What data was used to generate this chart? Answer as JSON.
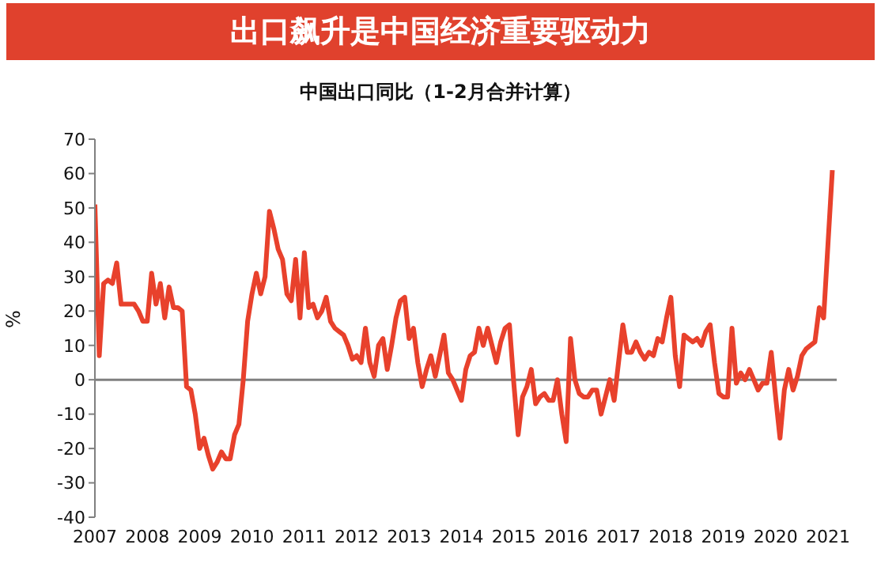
{
  "chart_data": {
    "type": "line",
    "title": "出口飙升是中国经济重要驱动力",
    "subtitle": "中国出口同比（1-2月合并计算）",
    "ylabel": "%",
    "x": [
      "2007-01",
      "2007-02",
      "2007-03",
      "2007-04",
      "2007-05",
      "2007-06",
      "2007-07",
      "2007-08",
      "2007-09",
      "2007-10",
      "2007-11",
      "2007-12",
      "2008-01",
      "2008-02",
      "2008-03",
      "2008-04",
      "2008-05",
      "2008-06",
      "2008-07",
      "2008-08",
      "2008-09",
      "2008-10",
      "2008-11",
      "2008-12",
      "2009-01",
      "2009-02",
      "2009-03",
      "2009-04",
      "2009-05",
      "2009-06",
      "2009-07",
      "2009-08",
      "2009-09",
      "2009-10",
      "2009-11",
      "2009-12",
      "2010-01",
      "2010-02",
      "2010-03",
      "2010-04",
      "2010-05",
      "2010-06",
      "2010-07",
      "2010-08",
      "2010-09",
      "2010-10",
      "2010-11",
      "2010-12",
      "2011-01",
      "2011-02",
      "2011-03",
      "2011-04",
      "2011-05",
      "2011-06",
      "2011-07",
      "2011-08",
      "2011-09",
      "2011-10",
      "2011-11",
      "2011-12",
      "2012-01",
      "2012-02",
      "2012-03",
      "2012-04",
      "2012-05",
      "2012-06",
      "2012-07",
      "2012-08",
      "2012-09",
      "2012-10",
      "2012-11",
      "2012-12",
      "2013-01",
      "2013-02",
      "2013-03",
      "2013-04",
      "2013-05",
      "2013-06",
      "2013-07",
      "2013-08",
      "2013-09",
      "2013-10",
      "2013-11",
      "2013-12",
      "2014-01",
      "2014-02",
      "2014-03",
      "2014-04",
      "2014-05",
      "2014-06",
      "2014-07",
      "2014-08",
      "2014-09",
      "2014-10",
      "2014-11",
      "2014-12",
      "2015-01",
      "2015-02",
      "2015-03",
      "2015-04",
      "2015-05",
      "2015-06",
      "2015-07",
      "2015-08",
      "2015-09",
      "2015-10",
      "2015-11",
      "2015-12",
      "2016-01",
      "2016-02",
      "2016-03",
      "2016-04",
      "2016-05",
      "2016-06",
      "2016-07",
      "2016-08",
      "2016-09",
      "2016-10",
      "2016-11",
      "2016-12",
      "2017-01",
      "2017-02",
      "2017-03",
      "2017-04",
      "2017-05",
      "2017-06",
      "2017-07",
      "2017-08",
      "2017-09",
      "2017-10",
      "2017-11",
      "2017-12",
      "2018-01",
      "2018-02",
      "2018-03",
      "2018-04",
      "2018-05",
      "2018-06",
      "2018-07",
      "2018-08",
      "2018-09",
      "2018-10",
      "2018-11",
      "2018-12",
      "2019-01",
      "2019-02",
      "2019-03",
      "2019-04",
      "2019-05",
      "2019-06",
      "2019-07",
      "2019-08",
      "2019-09",
      "2019-10",
      "2019-11",
      "2019-12",
      "2020-01",
      "2020-02",
      "2020-03",
      "2020-04",
      "2020-05",
      "2020-06",
      "2020-07",
      "2020-08",
      "2020-09",
      "2020-10",
      "2020-11",
      "2020-12",
      "2021-02"
    ],
    "series": [
      {
        "color": "#e8412c",
        "values": [
          51,
          7,
          28,
          29,
          28,
          34,
          22,
          22,
          22,
          22,
          20,
          17,
          17,
          31,
          22,
          28,
          18,
          27,
          21,
          21,
          20,
          -2,
          -3,
          -10,
          -20,
          -17,
          -22,
          -26,
          -24,
          -21,
          -23,
          -23,
          -16,
          -13,
          0,
          17,
          25,
          31,
          25,
          30,
          49,
          44,
          38,
          35,
          25,
          23,
          35,
          18,
          37,
          21,
          22,
          18,
          20,
          24,
          17,
          15,
          14,
          13,
          10,
          6,
          7,
          5,
          15,
          5,
          1,
          10,
          12,
          3,
          10,
          18,
          23,
          24,
          12,
          15,
          5,
          -2,
          3,
          7,
          1,
          7,
          13,
          2,
          0,
          -3,
          -6,
          3,
          7,
          8,
          15,
          10,
          15,
          10,
          5,
          11,
          15,
          16,
          -1,
          -16,
          -5,
          -2,
          3,
          -7,
          -5,
          -4,
          -6,
          -6,
          0,
          -10,
          -18,
          12,
          0,
          -4,
          -5,
          -5,
          -3,
          -3,
          -10,
          -5,
          0,
          -6,
          5,
          16,
          8,
          8,
          11,
          8,
          6,
          8,
          7,
          12,
          11,
          18,
          24,
          7,
          -2,
          13,
          12,
          11,
          12,
          10,
          14,
          16,
          5,
          -4,
          -5,
          -5,
          15,
          -1,
          2,
          0,
          3,
          0,
          -3,
          -1,
          -1,
          8,
          -5,
          -17,
          -3,
          3,
          -3,
          1,
          7,
          9,
          10,
          11,
          21,
          18,
          61
        ]
      }
    ],
    "xlim": [
      "2007-01",
      "2021-03"
    ],
    "xticks": [
      "2007",
      "2008",
      "2009",
      "2010",
      "2011",
      "2012",
      "2013",
      "2014",
      "2015",
      "2016",
      "2017",
      "2018",
      "2019",
      "2020",
      "2021"
    ],
    "ylim": [
      -40,
      70
    ],
    "yticks": [
      -40,
      -30,
      -20,
      -10,
      0,
      10,
      20,
      30,
      40,
      50,
      60,
      70
    ],
    "ref_lines": [
      {
        "axis": "y",
        "value": 0,
        "color": "#808080"
      }
    ],
    "grid": false,
    "legend": false,
    "marker": "none",
    "line_style": "solid"
  }
}
